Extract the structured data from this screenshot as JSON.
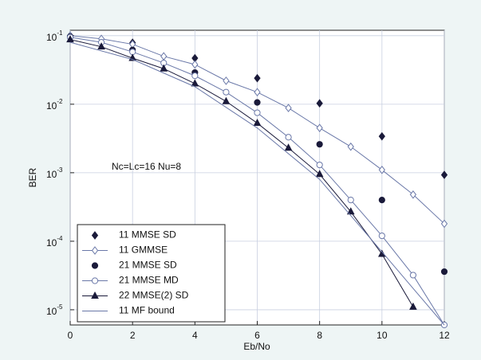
{
  "chart_data": {
    "type": "line",
    "x_label": "Eb/No",
    "y_label": "BER",
    "annotation": "Nc=Lc=16  Nu=8",
    "xlim": [
      0,
      12
    ],
    "xticks": [
      0,
      2,
      4,
      6,
      8,
      10,
      12
    ],
    "ylim": [
      6e-06,
      0.12
    ],
    "yticks": [
      {
        "value": 0.1,
        "label": "10",
        "exponent": "-1"
      },
      {
        "value": 0.01,
        "label": "10",
        "exponent": "-2"
      },
      {
        "value": 0.001,
        "label": "10",
        "exponent": "-3"
      },
      {
        "value": 0.0001,
        "label": "10",
        "exponent": "-4"
      },
      {
        "value": 1e-05,
        "label": "10",
        "exponent": "-5"
      }
    ],
    "log_y": true,
    "grid": true,
    "legend": "lower left",
    "series": [
      {
        "name": "11  MMSE SD",
        "color": "#1a1a3a",
        "marker": "filled-diamond",
        "line": false,
        "x": [
          0,
          2,
          4,
          6,
          8,
          10,
          12
        ],
        "values": [
          0.1,
          0.079,
          0.047,
          0.024,
          0.0103,
          0.0034,
          0.00093
        ]
      },
      {
        "name": "11  GMMSE",
        "color": "#6a78a8",
        "marker": "open-diamond",
        "line": true,
        "x": [
          0,
          1,
          2,
          3,
          4,
          5,
          6,
          7,
          8,
          9,
          10,
          11,
          12
        ],
        "values": [
          0.1,
          0.09,
          0.075,
          0.05,
          0.038,
          0.022,
          0.015,
          0.0088,
          0.0045,
          0.0024,
          0.0011,
          0.00048,
          0.00018
        ]
      },
      {
        "name": "21  MMSE SD",
        "color": "#1a1a3a",
        "marker": "filled-circle",
        "line": false,
        "x": [
          0,
          2,
          4,
          6,
          8,
          10,
          12
        ],
        "values": [
          0.097,
          0.062,
          0.029,
          0.0106,
          0.0026,
          0.0004,
          3.6e-05
        ]
      },
      {
        "name": "21  MMSE MD",
        "color": "#6a78a8",
        "marker": "open-circle",
        "line": true,
        "x": [
          0,
          1,
          2,
          3,
          4,
          5,
          6,
          7,
          8,
          9,
          10,
          11,
          12
        ],
        "values": [
          0.095,
          0.08,
          0.058,
          0.04,
          0.026,
          0.015,
          0.0075,
          0.0033,
          0.0013,
          0.0004,
          0.00012,
          3.2e-05,
          6e-06
        ]
      },
      {
        "name": "22  MMSE(2) SD",
        "color": "#1a1a3a",
        "marker": "filled-triangle",
        "line": true,
        "x": [
          0,
          1,
          2,
          3,
          4,
          5,
          6,
          7,
          8,
          9,
          10,
          11
        ],
        "values": [
          0.088,
          0.069,
          0.047,
          0.033,
          0.02,
          0.011,
          0.0053,
          0.0023,
          0.00095,
          0.00027,
          6.5e-05,
          1.1e-05
        ]
      },
      {
        "name": "11  MF bound",
        "color": "#6a78a8",
        "marker": "none",
        "line": true,
        "x": [
          0,
          2,
          4,
          6,
          8,
          10,
          12
        ],
        "values": [
          0.08,
          0.045,
          0.018,
          0.0045,
          0.0008,
          7e-05,
          6e-06
        ]
      }
    ]
  }
}
